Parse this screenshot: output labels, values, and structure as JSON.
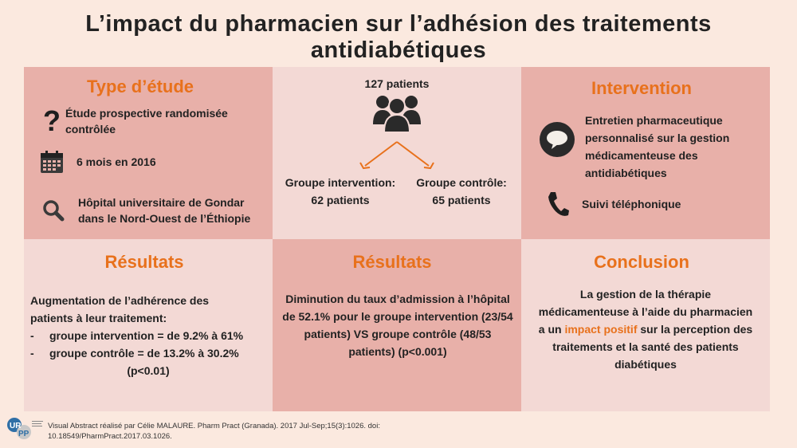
{
  "title": "L’impact du pharmacien sur l’adhésion des traitements antidiabétiques",
  "type_etude": {
    "title": "Type d’étude",
    "items": [
      {
        "icon": "question-icon",
        "text": "Étude prospective randomisée contrôlée"
      },
      {
        "icon": "calendar-icon",
        "text": "6 mois en 2016"
      },
      {
        "icon": "search-icon",
        "text": "Hôpital universitaire de Gondar dans le Nord-Ouest de l’Éthiopie"
      }
    ]
  },
  "patients": {
    "total": "127 patients",
    "intervention_label": "Groupe intervention:",
    "intervention_count": "62 patients",
    "control_label": "Groupe contrôle:",
    "control_count": "65 patients"
  },
  "intervention": {
    "title": "Intervention",
    "items": [
      {
        "icon": "speech-bubble-icon",
        "text": "Entretien pharmaceutique personnalisé sur la gestion médicamenteuse des antidiabétiques"
      },
      {
        "icon": "phone-icon",
        "text": "Suivi téléphonique"
      }
    ]
  },
  "resultats1": {
    "title": "Résultats",
    "intro": "Augmentation de l’adhérence des patients à leur traitement:",
    "bullets": [
      "groupe intervention = de 9.2% à 61%",
      "groupe contrôle = de 13.2% à 30.2%"
    ],
    "pvalue": "(p<0.01)"
  },
  "resultats2": {
    "title": "Résultats",
    "text": "Diminution du taux d’admission à l’hôpital de 52.1% pour le groupe intervention (23/54 patients) VS groupe contrôle (48/53 patients) (p<0.001)"
  },
  "conclusion": {
    "title": "Conclusion",
    "before": "La gestion de la thérapie médicamenteuse à l’aide du pharmacien a un",
    "highlight": "impact positif",
    "after": "sur la perception des traitements et la santé des patients diabétiques"
  },
  "footer": {
    "citation": "Visual Abstract réalisé par Célie MALAURE. Pharm Pract (Granada). 2017 Jul-Sep;15(3):1026. doi: 10.18549/PharmPract.2017.03.1026.",
    "logo_text_top": "UR",
    "logo_text_bottom": "PP"
  },
  "colors": {
    "accent": "#e8711c",
    "panel_dark": "#e8b0a9",
    "panel_light": "#f3d9d5",
    "background": "#fbe9df"
  }
}
